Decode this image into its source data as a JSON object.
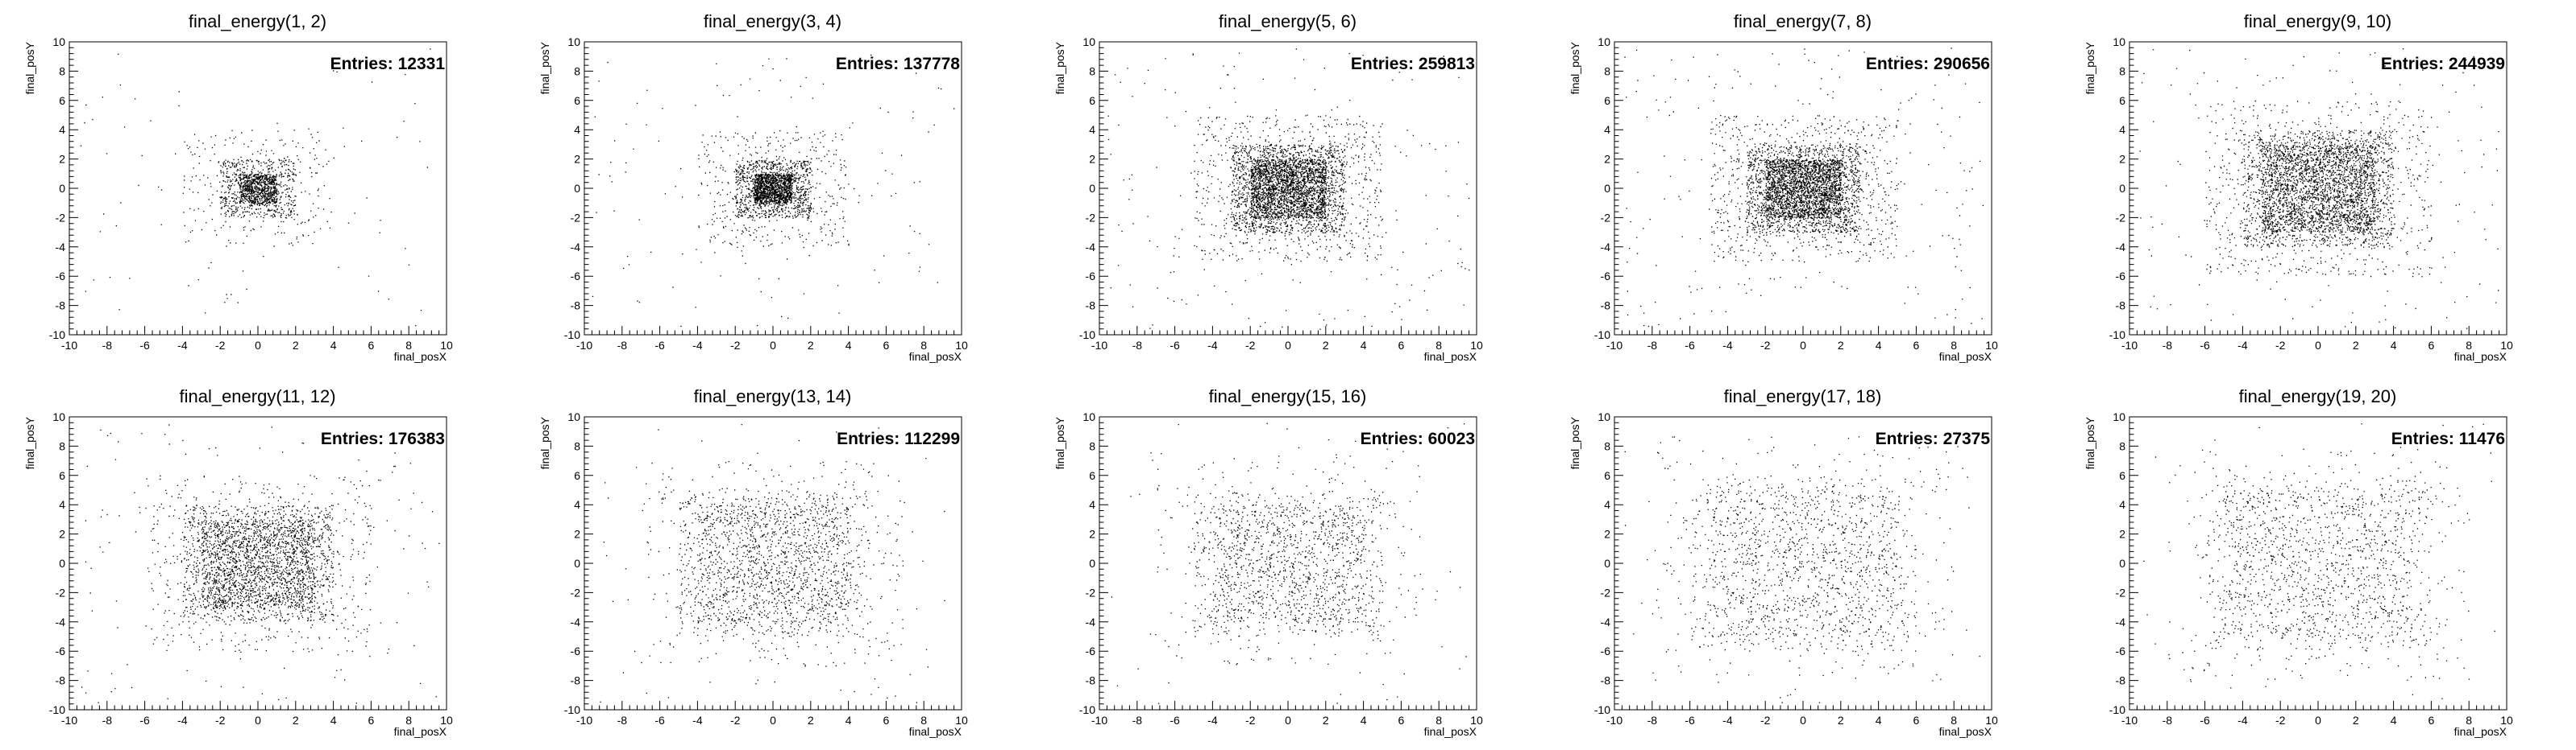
{
  "chart_data": [
    {
      "type": "scatter",
      "title": "final_energy(1, 2)",
      "xlabel": "final_posX",
      "ylabel": "final_posY",
      "xlim": [
        -10,
        10
      ],
      "ylim": [
        -10,
        10
      ],
      "entries_label": "Entries: 12331",
      "entries": 12331,
      "bands": [
        1,
        2
      ]
    },
    {
      "type": "scatter",
      "title": "final_energy(3, 4)",
      "xlabel": "final_posX",
      "ylabel": "final_posY",
      "xlim": [
        -10,
        10
      ],
      "ylim": [
        -10,
        10
      ],
      "entries_label": "Entries: 137778",
      "entries": 137778,
      "bands": [
        1,
        2
      ]
    },
    {
      "type": "scatter",
      "title": "final_energy(5, 6)",
      "xlabel": "final_posX",
      "ylabel": "final_posY",
      "xlim": [
        -10,
        10
      ],
      "ylim": [
        -10,
        10
      ],
      "entries_label": "Entries: 259813",
      "entries": 259813,
      "bands": [
        2,
        3
      ]
    },
    {
      "type": "scatter",
      "title": "final_energy(7, 8)",
      "xlabel": "final_posX",
      "ylabel": "final_posY",
      "xlim": [
        -10,
        10
      ],
      "ylim": [
        -10,
        10
      ],
      "entries_label": "Entries: 290656",
      "entries": 290656,
      "bands": [
        2,
        3
      ]
    },
    {
      "type": "scatter",
      "title": "final_energy(9, 10)",
      "xlabel": "final_posX",
      "ylabel": "final_posY",
      "xlim": [
        -10,
        10
      ],
      "ylim": [
        -10,
        10
      ],
      "entries_label": "Entries: 244939",
      "entries": 244939,
      "bands": [
        3,
        4
      ]
    },
    {
      "type": "scatter",
      "title": "final_energy(11, 12)",
      "xlabel": "final_posX",
      "ylabel": "final_posY",
      "xlim": [
        -10,
        10
      ],
      "ylim": [
        -10,
        10
      ],
      "entries_label": "Entries: 176383",
      "entries": 176383,
      "bands": [
        3,
        4
      ]
    },
    {
      "type": "scatter",
      "title": "final_energy(13, 14)",
      "xlabel": "final_posX",
      "ylabel": "final_posY",
      "xlim": [
        -10,
        10
      ],
      "ylim": [
        -10,
        10
      ],
      "entries_label": "Entries: 112299",
      "entries": 112299,
      "bands": [
        4,
        5
      ]
    },
    {
      "type": "scatter",
      "title": "final_energy(15, 16)",
      "xlabel": "final_posX",
      "ylabel": "final_posY",
      "xlim": [
        -10,
        10
      ],
      "ylim": [
        -10,
        10
      ],
      "entries_label": "Entries: 60023",
      "entries": 60023,
      "bands": [
        4,
        5
      ]
    },
    {
      "type": "scatter",
      "title": "final_energy(17, 18)",
      "xlabel": "final_posX",
      "ylabel": "final_posY",
      "xlim": [
        -10,
        10
      ],
      "ylim": [
        -10,
        10
      ],
      "entries_label": "Entries: 27375",
      "entries": 27375,
      "bands": [
        5,
        6
      ]
    },
    {
      "type": "scatter",
      "title": "final_energy(19, 20)",
      "xlabel": "final_posX",
      "ylabel": "final_posY",
      "xlim": [
        -10,
        10
      ],
      "ylim": [
        -10,
        10
      ],
      "entries_label": "Entries: 11476",
      "entries": 11476,
      "bands": [
        5,
        6
      ]
    }
  ],
  "axis": {
    "major_ticks": [
      -10,
      -8,
      -6,
      -4,
      -2,
      0,
      2,
      4,
      6,
      8,
      10
    ],
    "major_step": 2,
    "minor_step": 0.4
  },
  "style": {
    "marker_color": "#000000",
    "frame_color": "#000000",
    "background": "#ffffff"
  }
}
